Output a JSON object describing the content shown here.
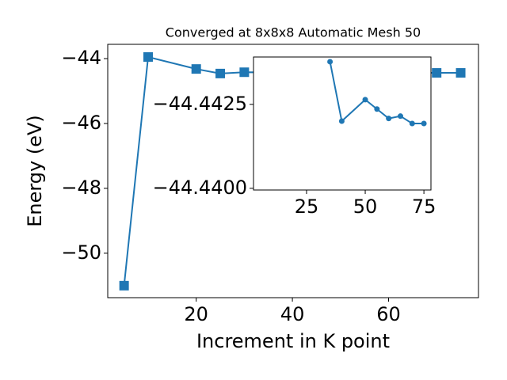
{
  "chart_data": [
    {
      "type": "line",
      "title": "Converged at 8x8x8 Automatic Mesh 50",
      "xlabel": "Increment in K point",
      "ylabel": "Energy (eV)",
      "x": [
        5,
        10,
        20,
        25,
        30,
        70,
        75
      ],
      "values": [
        -51.0,
        -43.95,
        -44.32,
        -44.46,
        -44.42,
        -44.44,
        -44.44
      ],
      "color": "#1f77b4",
      "marker": "square",
      "xlim": [
        1.6,
        78.7
      ],
      "xticks": [
        20,
        40,
        60
      ],
      "ylim": [
        -51.37,
        -43.56
      ],
      "yticks": [
        {
          "value": -50,
          "label": "−50"
        },
        {
          "value": -48,
          "label": "−48"
        },
        {
          "value": -46,
          "label": "−46"
        },
        {
          "value": -44,
          "label": "−44"
        }
      ]
    },
    {
      "type": "line",
      "x": [
        35,
        40,
        50,
        55,
        60,
        65,
        70,
        75
      ],
      "values": [
        -44.44377,
        -44.442,
        -44.44264,
        -44.44236,
        -44.44208,
        -44.44215,
        -44.44193,
        -44.44193
      ],
      "color": "#1f77b4",
      "marker": "circle",
      "xlim": [
        2.4,
        78.0
      ],
      "xticks": [
        25,
        50,
        75
      ],
      "ylim": [
        -44.43995,
        -44.44391
      ],
      "yticks": [
        {
          "value": -44.44,
          "label": "−44.4400"
        },
        {
          "value": -44.4425,
          "label": "−44.4425"
        }
      ]
    }
  ]
}
